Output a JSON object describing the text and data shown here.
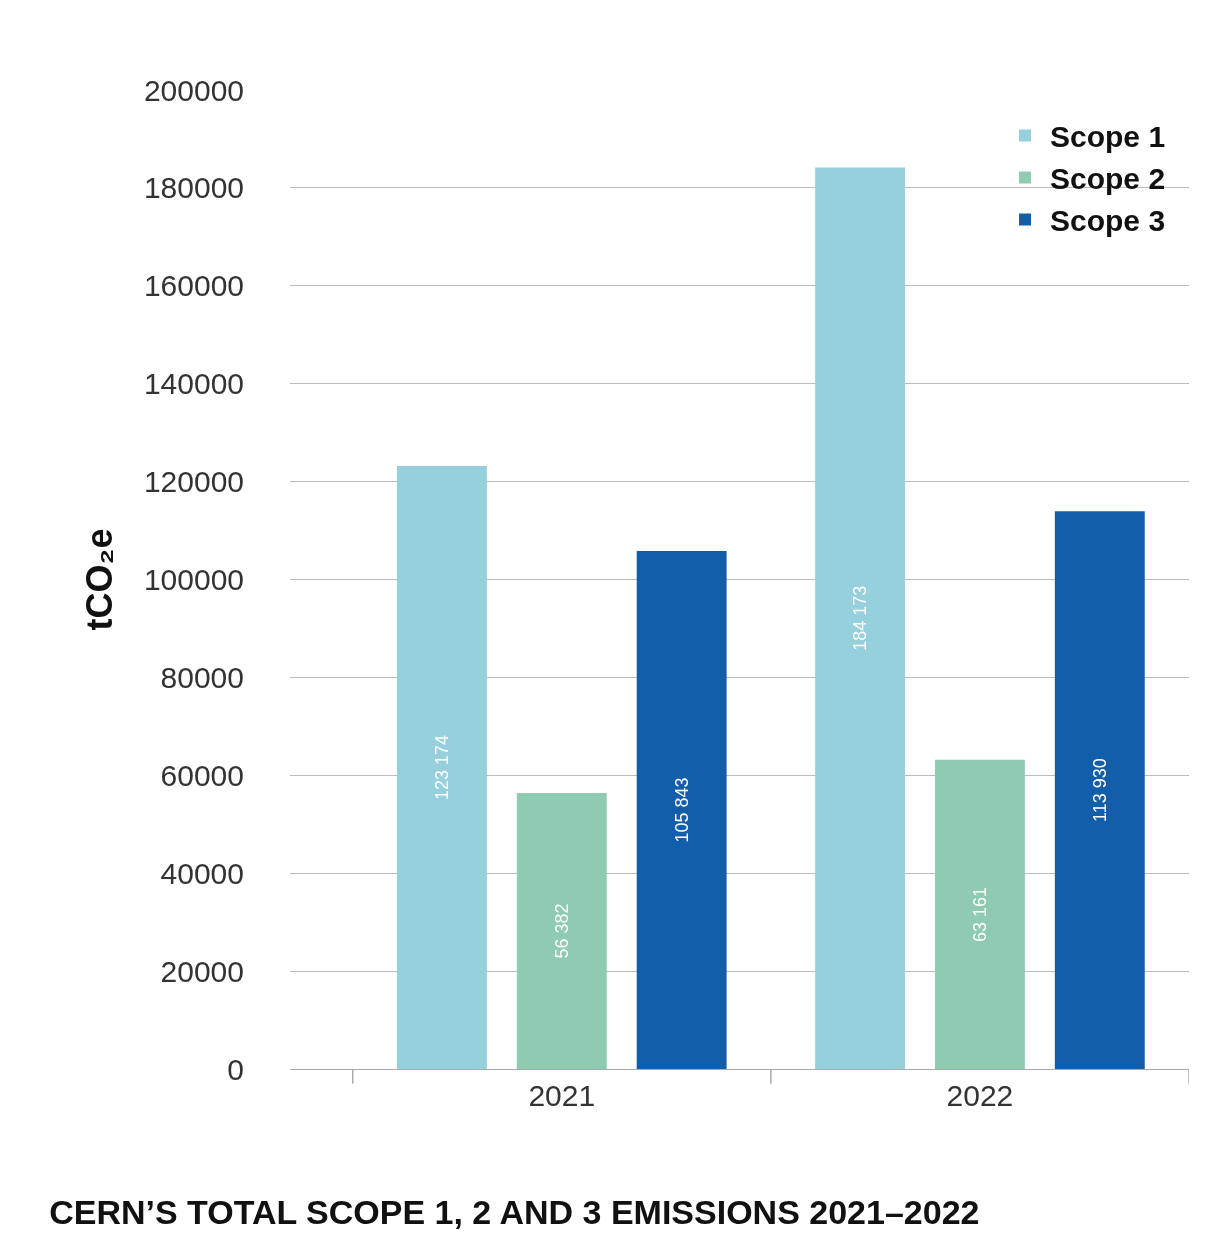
{
  "chart_data": {
    "type": "bar",
    "title": "CERN’S TOTAL SCOPE 1, 2 AND 3 EMISSIONS 2021–2022",
    "ylabel": "tCO₂e",
    "categories": [
      "2021",
      "2022"
    ],
    "series": [
      {
        "name": "Scope 1",
        "color": "#95d0dc",
        "values": [
          123174,
          184173
        ],
        "value_labels": [
          "123 174",
          "184 173"
        ]
      },
      {
        "name": "Scope 2",
        "color": "#8ecbb0",
        "values": [
          56382,
          63161
        ],
        "value_labels": [
          "56 382",
          "63 161"
        ]
      },
      {
        "name": "Scope 3",
        "color": "#135eab",
        "values": [
          105843,
          113930
        ],
        "value_labels": [
          "105 843",
          "113 930"
        ]
      }
    ],
    "ylim": [
      0,
      200000
    ],
    "yticks": [
      0,
      20000,
      40000,
      60000,
      80000,
      100000,
      120000,
      140000,
      160000,
      180000,
      200000
    ],
    "grid": "y",
    "legend": "top right"
  }
}
